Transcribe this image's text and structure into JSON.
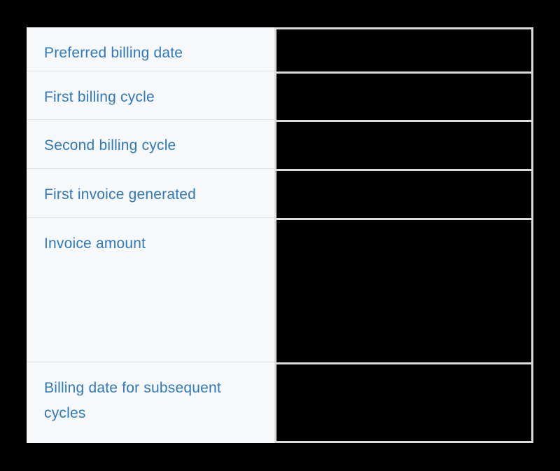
{
  "table": {
    "description": "billing information table with redacted values",
    "rows": [
      {
        "label": "Preferred billing date",
        "value": ""
      },
      {
        "label": "First billing cycle",
        "value": ""
      },
      {
        "label": "Second billing cycle",
        "value": ""
      },
      {
        "label": "First invoice generated",
        "value": ""
      },
      {
        "label": "Invoice amount",
        "value": ""
      },
      {
        "label": "Billing date for subsequent cycles",
        "value": ""
      }
    ]
  },
  "colors": {
    "page_bg": "#000000",
    "label_text": "#2e79bd",
    "label_cell_bg": "#f7f8f9",
    "label_divider": "#e3e4e6",
    "value_border": "#dcdcdc",
    "value_cell_bg": "#000000"
  }
}
